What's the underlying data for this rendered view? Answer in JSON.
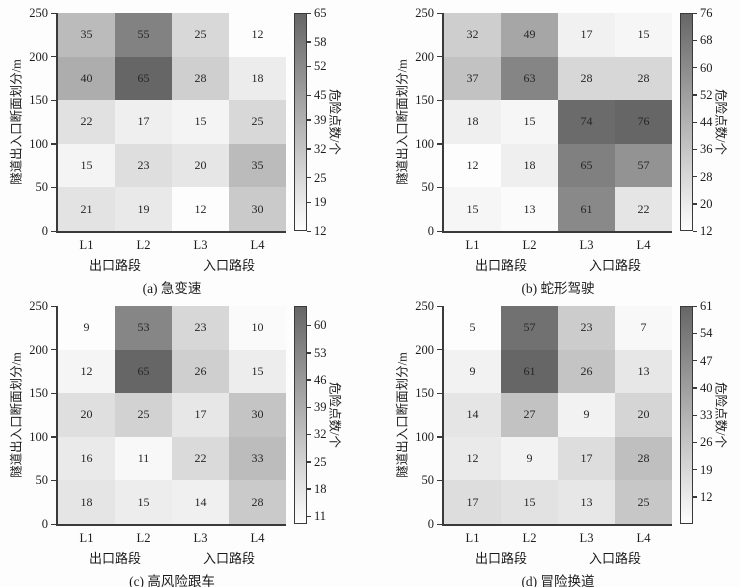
{
  "figure": {
    "y_axis_label": "隧道出入口断面划分/m",
    "colorbar_label": "危险点数/个",
    "x_group_labels": [
      "出口路段",
      "入口路段"
    ],
    "x_categories": [
      "L1",
      "L2",
      "L3",
      "L4"
    ],
    "y_tick_labels": [
      250,
      200,
      150,
      100,
      50,
      0
    ]
  },
  "colors": {
    "cmap_low": "#fdfdfd",
    "cmap_high": "#666666",
    "spine": "#3a3a3a",
    "text": "#222222",
    "background": "#fdfdfd"
  },
  "chart_data": [
    {
      "type": "heatmap",
      "title": "(a) 急变速",
      "ylabel": "隧道出入口断面划分/m",
      "colorbar_label": "危险点数/个",
      "x_categories": [
        "L1",
        "L2",
        "L3",
        "L4"
      ],
      "xlabel_groups": [
        "出口路段",
        "入口路段"
      ],
      "y_tick_labels": [
        250,
        200,
        150,
        100,
        50,
        0
      ],
      "y_bins": [
        "200–250",
        "150–200",
        "100–150",
        "50–100",
        "0–50"
      ],
      "values": [
        [
          35,
          55,
          25,
          12
        ],
        [
          40,
          65,
          28,
          18
        ],
        [
          22,
          17,
          15,
          25
        ],
        [
          15,
          23,
          20,
          35
        ],
        [
          21,
          19,
          12,
          30
        ]
      ],
      "scale_min": 12,
      "scale_max": 65,
      "colorbar_ticks": [
        65,
        58,
        52,
        45,
        39,
        32,
        25,
        19,
        12
      ]
    },
    {
      "type": "heatmap",
      "title": "(b) 蛇形驾驶",
      "ylabel": "隧道出入口断面划分/m",
      "colorbar_label": "危险点数/个",
      "x_categories": [
        "L1",
        "L2",
        "L3",
        "L4"
      ],
      "xlabel_groups": [
        "出口路段",
        "入口路段"
      ],
      "y_tick_labels": [
        250,
        200,
        150,
        100,
        50,
        0
      ],
      "y_bins": [
        "200–250",
        "150–200",
        "100–150",
        "50–100",
        "0–50"
      ],
      "values": [
        [
          32,
          49,
          17,
          15
        ],
        [
          37,
          63,
          28,
          28
        ],
        [
          18,
          15,
          74,
          76
        ],
        [
          12,
          18,
          65,
          57
        ],
        [
          15,
          13,
          61,
          22
        ]
      ],
      "scale_min": 12,
      "scale_max": 76,
      "colorbar_ticks": [
        76,
        68,
        60,
        52,
        44,
        36,
        28,
        20,
        12
      ]
    },
    {
      "type": "heatmap",
      "title": "(c) 高风险跟车",
      "ylabel": "隧道出入口断面划分/m",
      "colorbar_label": "危险点数/个",
      "x_categories": [
        "L1",
        "L2",
        "L3",
        "L4"
      ],
      "xlabel_groups": [
        "出口路段",
        "入口路段"
      ],
      "y_tick_labels": [
        250,
        200,
        150,
        100,
        50,
        0
      ],
      "y_bins": [
        "200–250",
        "150–200",
        "100–150",
        "50–100",
        "0–50"
      ],
      "values": [
        [
          9,
          53,
          23,
          10
        ],
        [
          12,
          65,
          26,
          15
        ],
        [
          20,
          25,
          17,
          30
        ],
        [
          16,
          11,
          22,
          33
        ],
        [
          18,
          15,
          14,
          28
        ]
      ],
      "scale_min": 9,
      "scale_max": 65,
      "colorbar_ticks": [
        60,
        53,
        46,
        39,
        32,
        25,
        18,
        11
      ]
    },
    {
      "type": "heatmap",
      "title": "(d) 冒险换道",
      "ylabel": "隧道出入口断面划分/m",
      "colorbar_label": "危险点数/个",
      "x_categories": [
        "L1",
        "L2",
        "L3",
        "L4"
      ],
      "xlabel_groups": [
        "出口路段",
        "入口路段"
      ],
      "y_tick_labels": [
        250,
        200,
        150,
        100,
        50,
        0
      ],
      "y_bins": [
        "200–250",
        "150–200",
        "100–150",
        "50–100",
        "0–50"
      ],
      "values": [
        [
          5,
          57,
          23,
          7
        ],
        [
          9,
          61,
          26,
          13
        ],
        [
          14,
          27,
          9,
          20
        ],
        [
          12,
          9,
          17,
          28
        ],
        [
          17,
          15,
          13,
          25
        ]
      ],
      "scale_min": 5,
      "scale_max": 61,
      "colorbar_ticks": [
        61,
        54,
        47,
        40,
        33,
        26,
        19,
        12
      ]
    }
  ]
}
